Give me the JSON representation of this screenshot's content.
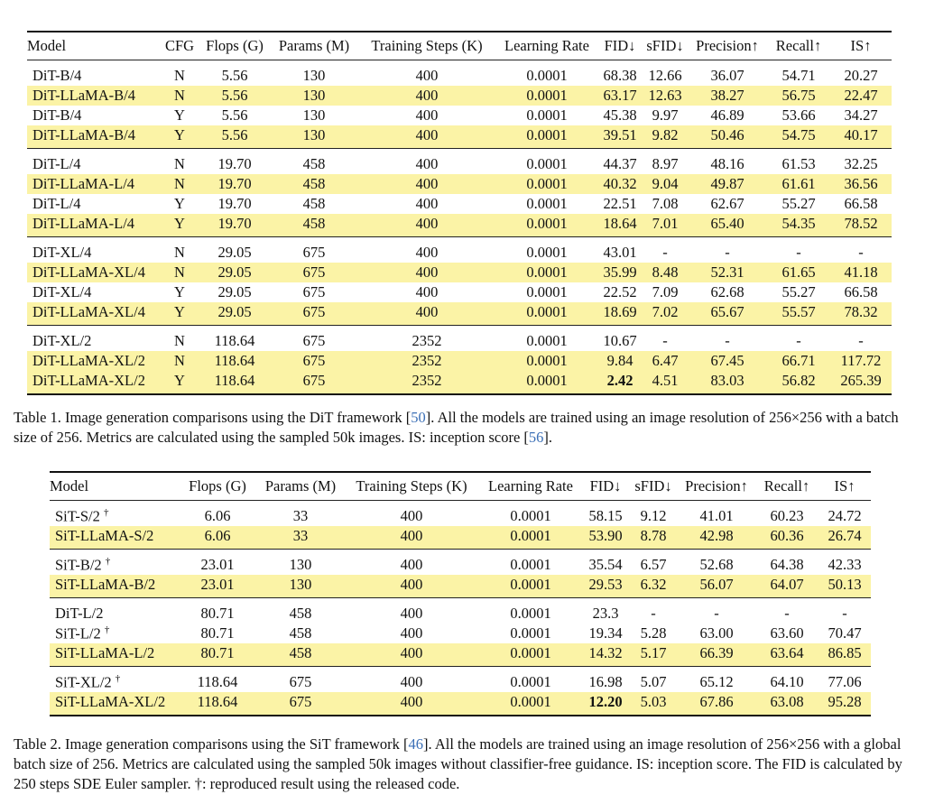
{
  "table1": {
    "headers": [
      "Model",
      "CFG",
      "Flops (G)",
      "Params (M)",
      "Training Steps (K)",
      "Learning Rate",
      "FID↓",
      "sFID↓",
      "Precision↑",
      "Recall↑",
      "IS↑"
    ],
    "groups": [
      [
        {
          "hl": false,
          "cells": [
            "DiT-B/4",
            "N",
            "5.56",
            "130",
            "400",
            "0.0001",
            "68.38",
            "12.66",
            "36.07",
            "54.71",
            "20.27"
          ]
        },
        {
          "hl": true,
          "cells": [
            "DiT-LLaMA-B/4",
            "N",
            "5.56",
            "130",
            "400",
            "0.0001",
            "63.17",
            "12.63",
            "38.27",
            "56.75",
            "22.47"
          ]
        },
        {
          "hl": false,
          "cells": [
            "DiT-B/4",
            "Y",
            "5.56",
            "130",
            "400",
            "0.0001",
            "45.38",
            "9.97",
            "46.89",
            "53.66",
            "34.27"
          ]
        },
        {
          "hl": true,
          "cells": [
            "DiT-LLaMA-B/4",
            "Y",
            "5.56",
            "130",
            "400",
            "0.0001",
            "39.51",
            "9.82",
            "50.46",
            "54.75",
            "40.17"
          ]
        }
      ],
      [
        {
          "hl": false,
          "cells": [
            "DiT-L/4",
            "N",
            "19.70",
            "458",
            "400",
            "0.0001",
            "44.37",
            "8.97",
            "48.16",
            "61.53",
            "32.25"
          ]
        },
        {
          "hl": true,
          "cells": [
            "DiT-LLaMA-L/4",
            "N",
            "19.70",
            "458",
            "400",
            "0.0001",
            "40.32",
            "9.04",
            "49.87",
            "61.61",
            "36.56"
          ]
        },
        {
          "hl": false,
          "cells": [
            "DiT-L/4",
            "Y",
            "19.70",
            "458",
            "400",
            "0.0001",
            "22.51",
            "7.08",
            "62.67",
            "55.27",
            "66.58"
          ]
        },
        {
          "hl": true,
          "cells": [
            "DiT-LLaMA-L/4",
            "Y",
            "19.70",
            "458",
            "400",
            "0.0001",
            "18.64",
            "7.01",
            "65.40",
            "54.35",
            "78.52"
          ]
        }
      ],
      [
        {
          "hl": false,
          "cells": [
            "DiT-XL/4",
            "N",
            "29.05",
            "675",
            "400",
            "0.0001",
            "43.01",
            "-",
            "-",
            "-",
            "-"
          ]
        },
        {
          "hl": true,
          "cells": [
            "DiT-LLaMA-XL/4",
            "N",
            "29.05",
            "675",
            "400",
            "0.0001",
            "35.99",
            "8.48",
            "52.31",
            "61.65",
            "41.18"
          ]
        },
        {
          "hl": false,
          "cells": [
            "DiT-XL/4",
            "Y",
            "29.05",
            "675",
            "400",
            "0.0001",
            "22.52",
            "7.09",
            "62.68",
            "55.27",
            "66.58"
          ]
        },
        {
          "hl": true,
          "cells": [
            "DiT-LLaMA-XL/4",
            "Y",
            "29.05",
            "675",
            "400",
            "0.0001",
            "18.69",
            "7.02",
            "65.67",
            "55.57",
            "78.32"
          ]
        }
      ],
      [
        {
          "hl": false,
          "cells": [
            "DiT-XL/2",
            "N",
            "118.64",
            "675",
            "2352",
            "0.0001",
            "10.67",
            "-",
            "-",
            "-",
            "-"
          ]
        },
        {
          "hl": true,
          "cells": [
            "DiT-LLaMA-XL/2",
            "N",
            "118.64",
            "675",
            "2352",
            "0.0001",
            "9.84",
            "6.47",
            "67.45",
            "66.71",
            "117.72"
          ]
        },
        {
          "hl": true,
          "bold_fid": true,
          "cells": [
            "DiT-LLaMA-XL/2",
            "Y",
            "118.64",
            "675",
            "2352",
            "0.0001",
            "2.42",
            "4.51",
            "83.03",
            "56.82",
            "265.39"
          ]
        }
      ]
    ],
    "caption_prefix": "Table 1. Image generation comparisons using the DiT framework [",
    "cite1": "50",
    "caption_mid": "]. All the models are trained using an image resolution of 256×256 with a batch size of 256. Metrics are calculated using the sampled 50k images. IS: inception score [",
    "cite2": "56",
    "caption_end": "]."
  },
  "table2": {
    "headers": [
      "Model",
      "Flops (G)",
      "Params (M)",
      "Training Steps (K)",
      "Learning Rate",
      "FID↓",
      "sFID↓",
      "Precision↑",
      "Recall↑",
      "IS↑"
    ],
    "dagger": "†",
    "groups": [
      [
        {
          "hl": false,
          "dag": true,
          "cells": [
            "SiT-S/2",
            "6.06",
            "33",
            "400",
            "0.0001",
            "58.15",
            "9.12",
            "41.01",
            "60.23",
            "24.72"
          ]
        },
        {
          "hl": true,
          "dag": false,
          "cells": [
            "SiT-LLaMA-S/2",
            "6.06",
            "33",
            "400",
            "0.0001",
            "53.90",
            "8.78",
            "42.98",
            "60.36",
            "26.74"
          ]
        }
      ],
      [
        {
          "hl": false,
          "dag": true,
          "cells": [
            "SiT-B/2",
            "23.01",
            "130",
            "400",
            "0.0001",
            "35.54",
            "6.57",
            "52.68",
            "64.38",
            "42.33"
          ]
        },
        {
          "hl": true,
          "dag": false,
          "cells": [
            "SiT-LLaMA-B/2",
            "23.01",
            "130",
            "400",
            "0.0001",
            "29.53",
            "6.32",
            "56.07",
            "64.07",
            "50.13"
          ]
        }
      ],
      [
        {
          "hl": false,
          "dag": false,
          "cells": [
            "DiT-L/2",
            "80.71",
            "458",
            "400",
            "0.0001",
            "23.3",
            "-",
            "-",
            "-",
            "-"
          ]
        },
        {
          "hl": false,
          "dag": true,
          "cells": [
            "SiT-L/2",
            "80.71",
            "458",
            "400",
            "0.0001",
            "19.34",
            "5.28",
            "63.00",
            "63.60",
            "70.47"
          ]
        },
        {
          "hl": true,
          "dag": false,
          "cells": [
            "SiT-LLaMA-L/2",
            "80.71",
            "458",
            "400",
            "0.0001",
            "14.32",
            "5.17",
            "66.39",
            "63.64",
            "86.85"
          ]
        }
      ],
      [
        {
          "hl": false,
          "dag": true,
          "cells": [
            "SiT-XL/2",
            "118.64",
            "675",
            "400",
            "0.0001",
            "16.98",
            "5.07",
            "65.12",
            "64.10",
            "77.06"
          ]
        },
        {
          "hl": true,
          "dag": false,
          "bold_fid": true,
          "cells": [
            "SiT-LLaMA-XL/2",
            "118.64",
            "675",
            "400",
            "0.0001",
            "12.20",
            "5.03",
            "67.86",
            "63.08",
            "95.28"
          ]
        }
      ]
    ],
    "caption_prefix": "Table 2. Image generation comparisons using the SiT framework [",
    "cite1": "46",
    "caption_rest": "]. All the models are trained using an image resolution of 256×256 with a global batch size of 256. Metrics are calculated using the sampled 50k images without classifier-free guidance. IS: inception score. The FID is calculated by 250 steps SDE Euler sampler. †: reproduced result using the released code."
  }
}
